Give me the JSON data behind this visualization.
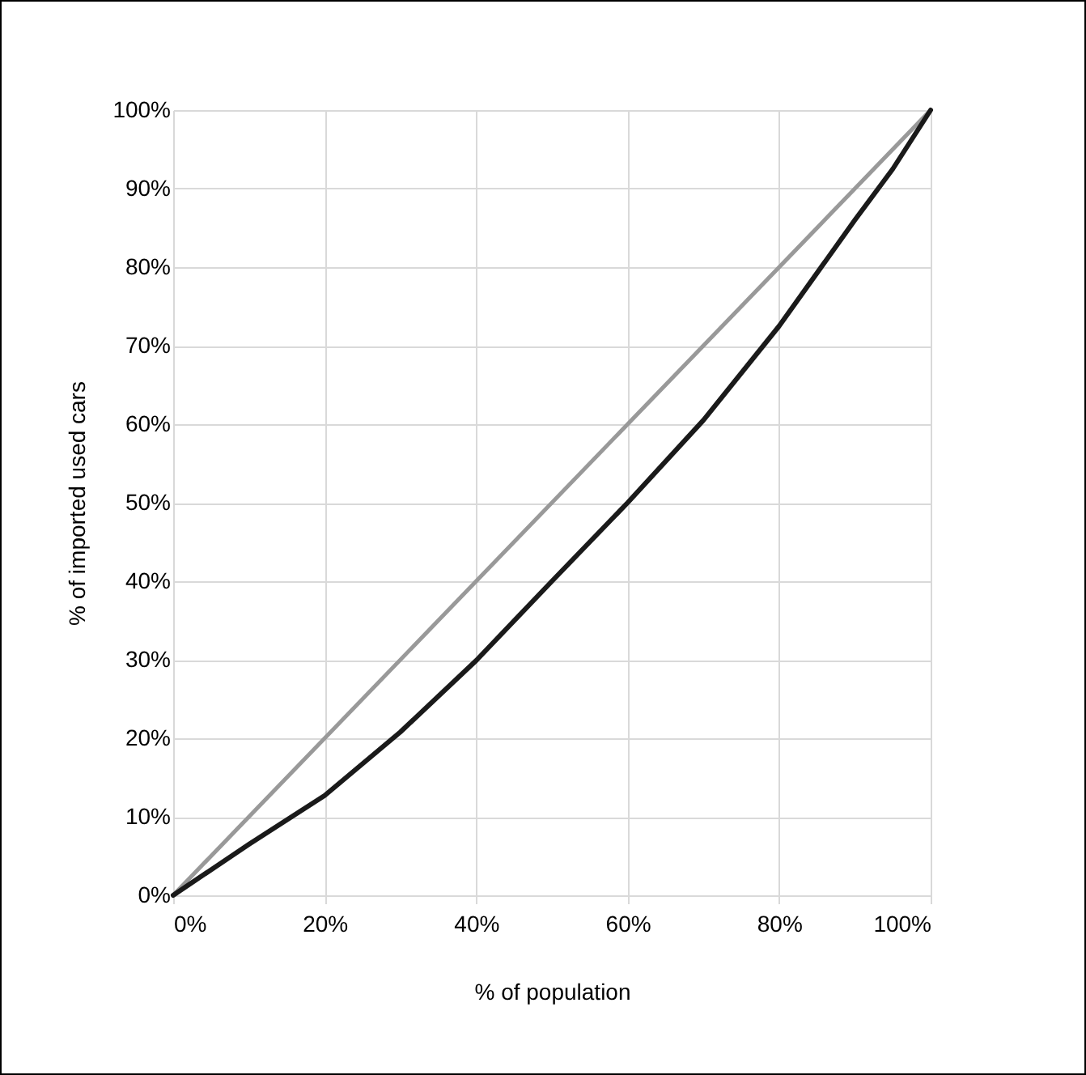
{
  "chart_data": {
    "type": "line",
    "xlabel": "% of population",
    "ylabel": "% of imported used cars",
    "xlim": [
      0,
      100
    ],
    "ylim": [
      0,
      100
    ],
    "xticks": [
      {
        "value": 0,
        "label": "0%"
      },
      {
        "value": 20,
        "label": "20%"
      },
      {
        "value": 40,
        "label": "40%"
      },
      {
        "value": 60,
        "label": "60%"
      },
      {
        "value": 80,
        "label": "80%"
      },
      {
        "value": 100,
        "label": "100%"
      }
    ],
    "yticks": [
      {
        "value": 0,
        "label": "0%"
      },
      {
        "value": 10,
        "label": "10%"
      },
      {
        "value": 20,
        "label": "20%"
      },
      {
        "value": 30,
        "label": "30%"
      },
      {
        "value": 40,
        "label": "40%"
      },
      {
        "value": 50,
        "label": "50%"
      },
      {
        "value": 60,
        "label": "60%"
      },
      {
        "value": 70,
        "label": "70%"
      },
      {
        "value": 80,
        "label": "80%"
      },
      {
        "value": 90,
        "label": "90%"
      },
      {
        "value": 100,
        "label": "100%"
      }
    ],
    "grid": true,
    "line_style": "solid",
    "marker": "none",
    "series": [
      {
        "color": "#999999",
        "x": [
          0,
          100
        ],
        "values": [
          0,
          100
        ]
      },
      {
        "color": "#1a1a1a",
        "x": [
          0,
          10,
          20,
          30,
          40,
          50,
          60,
          70,
          80,
          90,
          95,
          100
        ],
        "values": [
          0,
          6.5,
          12.7,
          20.8,
          29.9,
          40,
          50,
          60.5,
          72.5,
          86,
          92.5,
          100
        ]
      }
    ]
  }
}
